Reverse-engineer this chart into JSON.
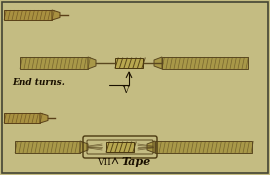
{
  "bg_color": "#c4bc82",
  "border_color": "#444433",
  "wire_body_color": "#a89848",
  "wire_edge_color": "#5a4820",
  "splice_color": "#b8a850",
  "splice_edge": "#4a3810",
  "tape_outer_color": "#9a8838",
  "text_color": "#1a1000",
  "label_end_turns": "End turns.",
  "label_v": "V",
  "label_vii": "VII",
  "label_tape": "Tape",
  "fig_width": 2.7,
  "fig_height": 1.75,
  "dpi": 100
}
